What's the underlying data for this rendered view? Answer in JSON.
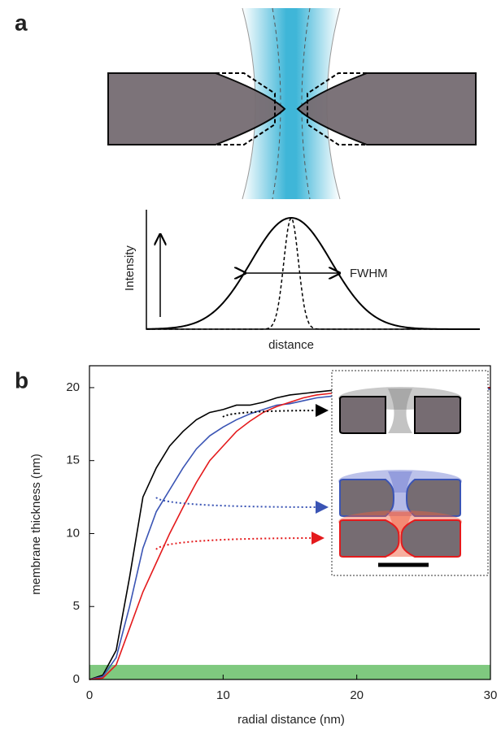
{
  "panel_a": {
    "label": "a",
    "y_label": "Intensity",
    "annotation": "FWHM",
    "x_label": "distance"
  },
  "chart_data": {
    "type": "line",
    "panel_label": "b",
    "x_label": "radial distance (nm)",
    "y_label": "membrane thickness (nm)",
    "x": [
      0,
      1,
      2,
      3,
      4,
      5,
      6,
      7,
      8,
      9,
      10,
      11,
      12,
      13,
      14,
      15,
      16,
      17,
      18,
      19,
      20,
      21,
      22,
      23,
      24,
      25,
      26,
      27,
      28,
      29,
      30
    ],
    "series": [
      {
        "color": "#000000",
        "values": [
          0,
          0.3,
          2,
          7,
          12.5,
          14.5,
          16,
          17,
          17.8,
          18.3,
          18.5,
          18.8,
          18.8,
          19,
          19.3,
          19.5,
          19.6,
          19.7,
          19.8,
          19.8,
          19.9,
          19.9,
          19.9,
          19.9,
          20,
          20,
          20,
          20,
          20,
          20,
          20
        ]
      },
      {
        "color": "#3a54b4",
        "values": [
          0,
          0.2,
          1.5,
          5,
          9,
          11.5,
          13,
          14.5,
          15.8,
          16.7,
          17.3,
          17.8,
          18.2,
          18.5,
          18.8,
          18.9,
          19.1,
          19.3,
          19.4,
          19.5,
          19.6,
          19.6,
          19.7,
          19.7,
          19.8,
          19.8,
          19.8,
          19.9,
          19.9,
          19.9,
          19.9
        ]
      },
      {
        "color": "#e41a1c",
        "values": [
          0,
          0.1,
          1,
          3.5,
          6,
          8,
          10,
          11.8,
          13.5,
          15,
          16,
          17,
          17.7,
          18.3,
          18.7,
          19,
          19.3,
          19.5,
          19.6,
          19.7,
          19.8,
          19.8,
          19.9,
          19.9,
          19.9,
          20,
          20,
          20,
          20,
          20,
          20
        ]
      }
    ],
    "shaded_band": {
      "range": [
        0,
        1
      ],
      "color": "#7fc97f"
    },
    "xlim": [
      0,
      30
    ],
    "ylim": [
      0,
      21.5
    ],
    "xticks": [
      0,
      10,
      20,
      30
    ],
    "yticks": [
      0,
      5,
      10,
      15,
      20
    ]
  }
}
